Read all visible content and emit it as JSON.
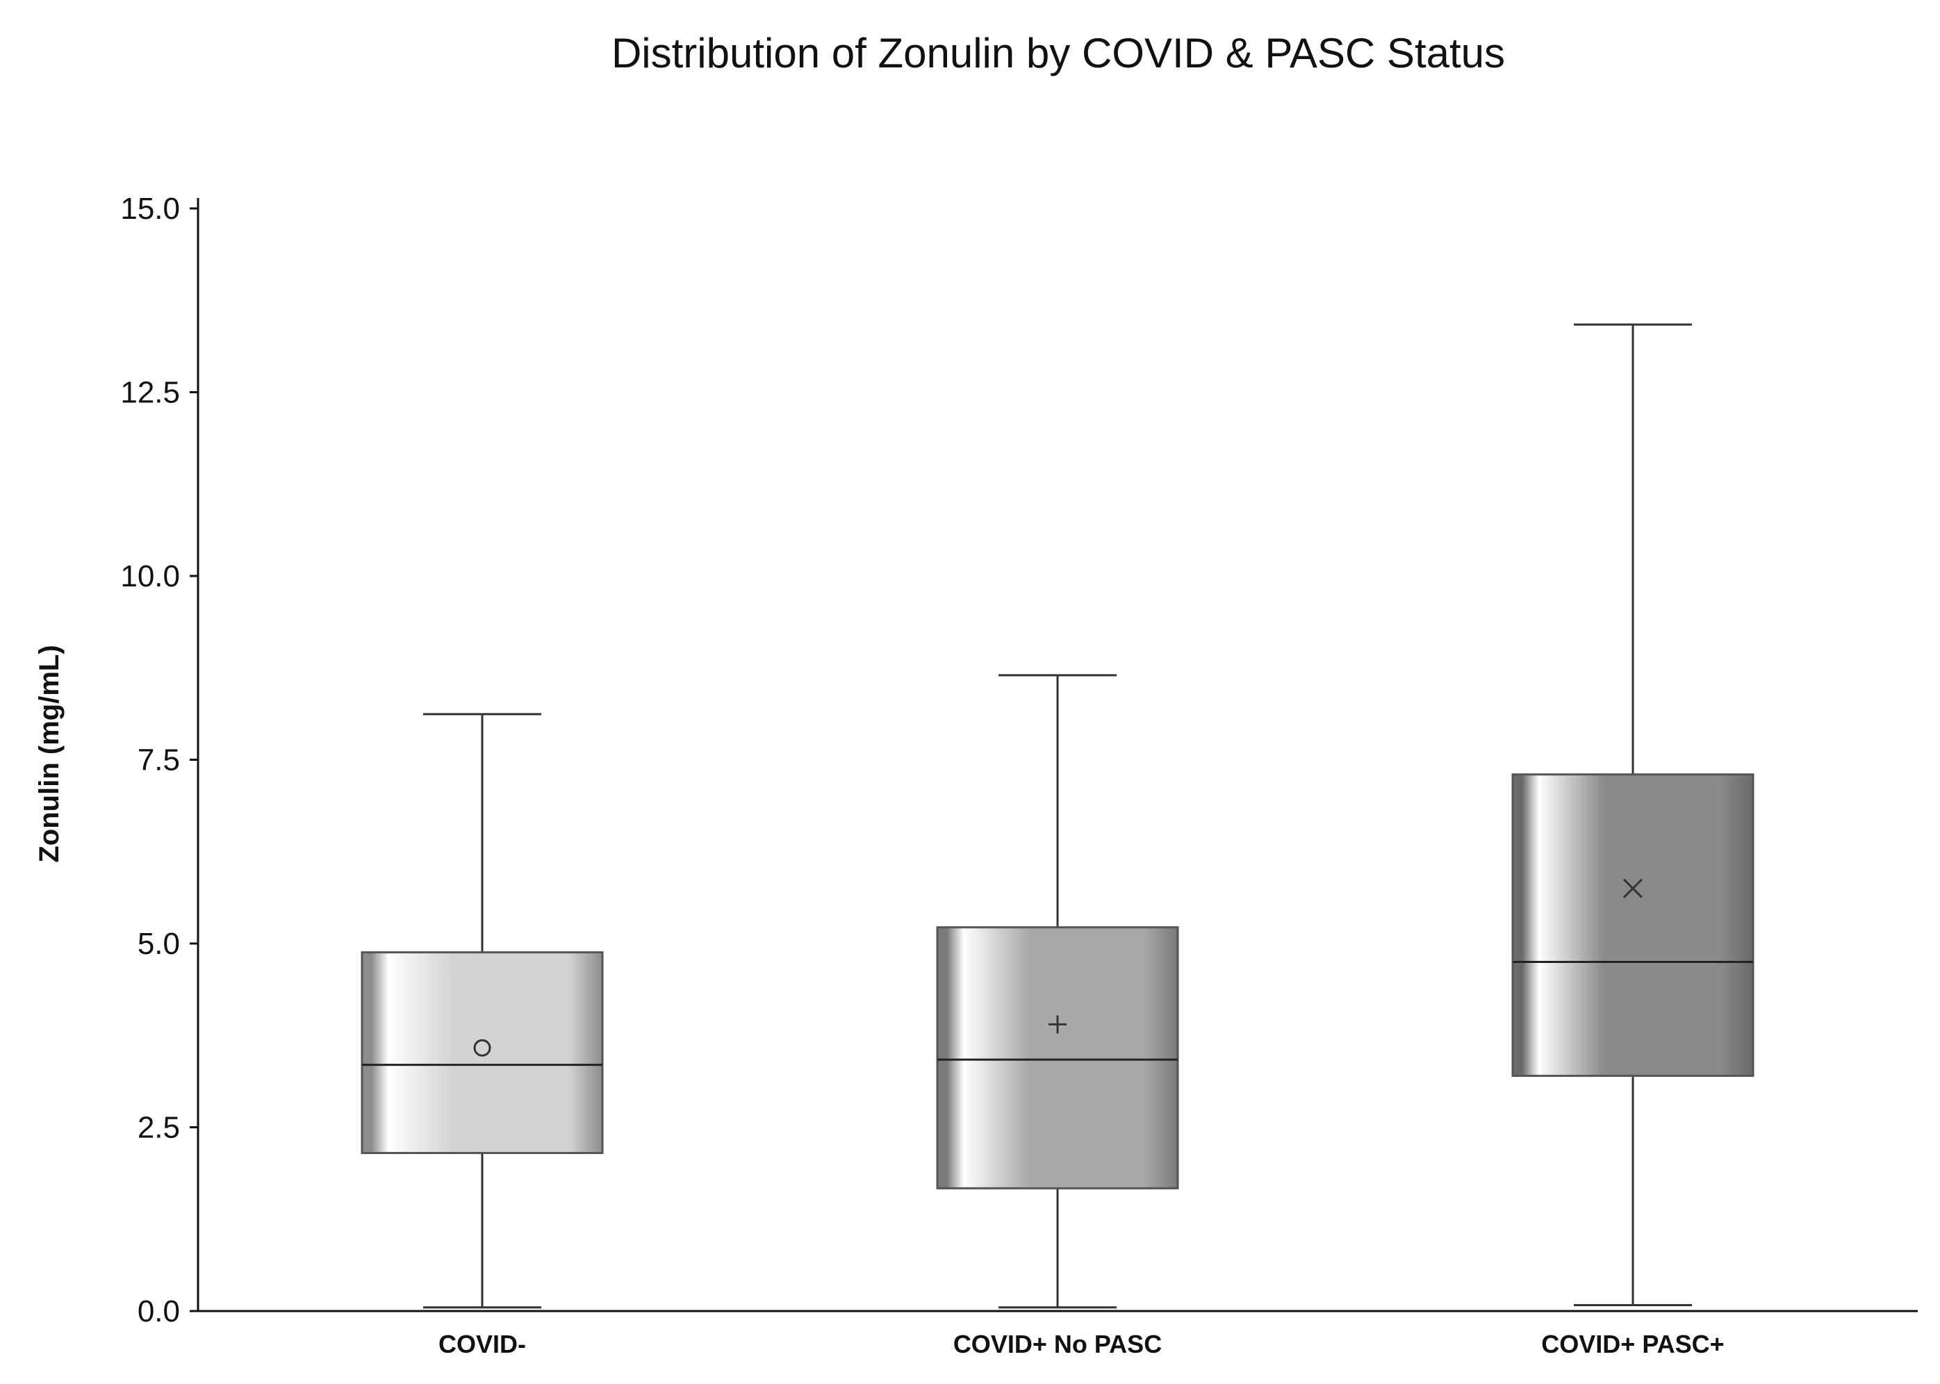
{
  "chart_data": {
    "type": "box",
    "title": "Distribution of Zonulin by COVID & PASC Status",
    "xlabel": "",
    "ylabel": "Zonulin (mg/mL)",
    "ylim": [
      0,
      15
    ],
    "yticks": [
      "0.0",
      "2.5",
      "5.0",
      "7.5",
      "10.0",
      "12.5",
      "15.0"
    ],
    "grid": false,
    "categories": [
      "COVID-",
      "COVID+ No PASC",
      "COVID+ PASC+"
    ],
    "boxes": [
      {
        "category": "COVID-",
        "whisker_low": 0.05,
        "q1": 2.15,
        "median": 3.35,
        "q3": 4.88,
        "whisker_high": 8.12,
        "mean": 3.58,
        "mean_marker": "circle",
        "fill": "#d3d3d3",
        "edge": "#8c8c8c"
      },
      {
        "category": "COVID+ No PASC",
        "whisker_low": 0.05,
        "q1": 1.67,
        "median": 3.42,
        "q3": 5.22,
        "whisker_high": 8.65,
        "mean": 3.9,
        "mean_marker": "plus",
        "fill": "#a9a9a9",
        "edge": "#7a7a7a"
      },
      {
        "category": "COVID+ PASC+",
        "whisker_low": 0.08,
        "q1": 3.2,
        "median": 4.75,
        "q3": 7.3,
        "whisker_high": 13.42,
        "mean": 5.75,
        "mean_marker": "x",
        "fill": "#8a8a8a",
        "edge": "#6a6a6a"
      }
    ]
  }
}
